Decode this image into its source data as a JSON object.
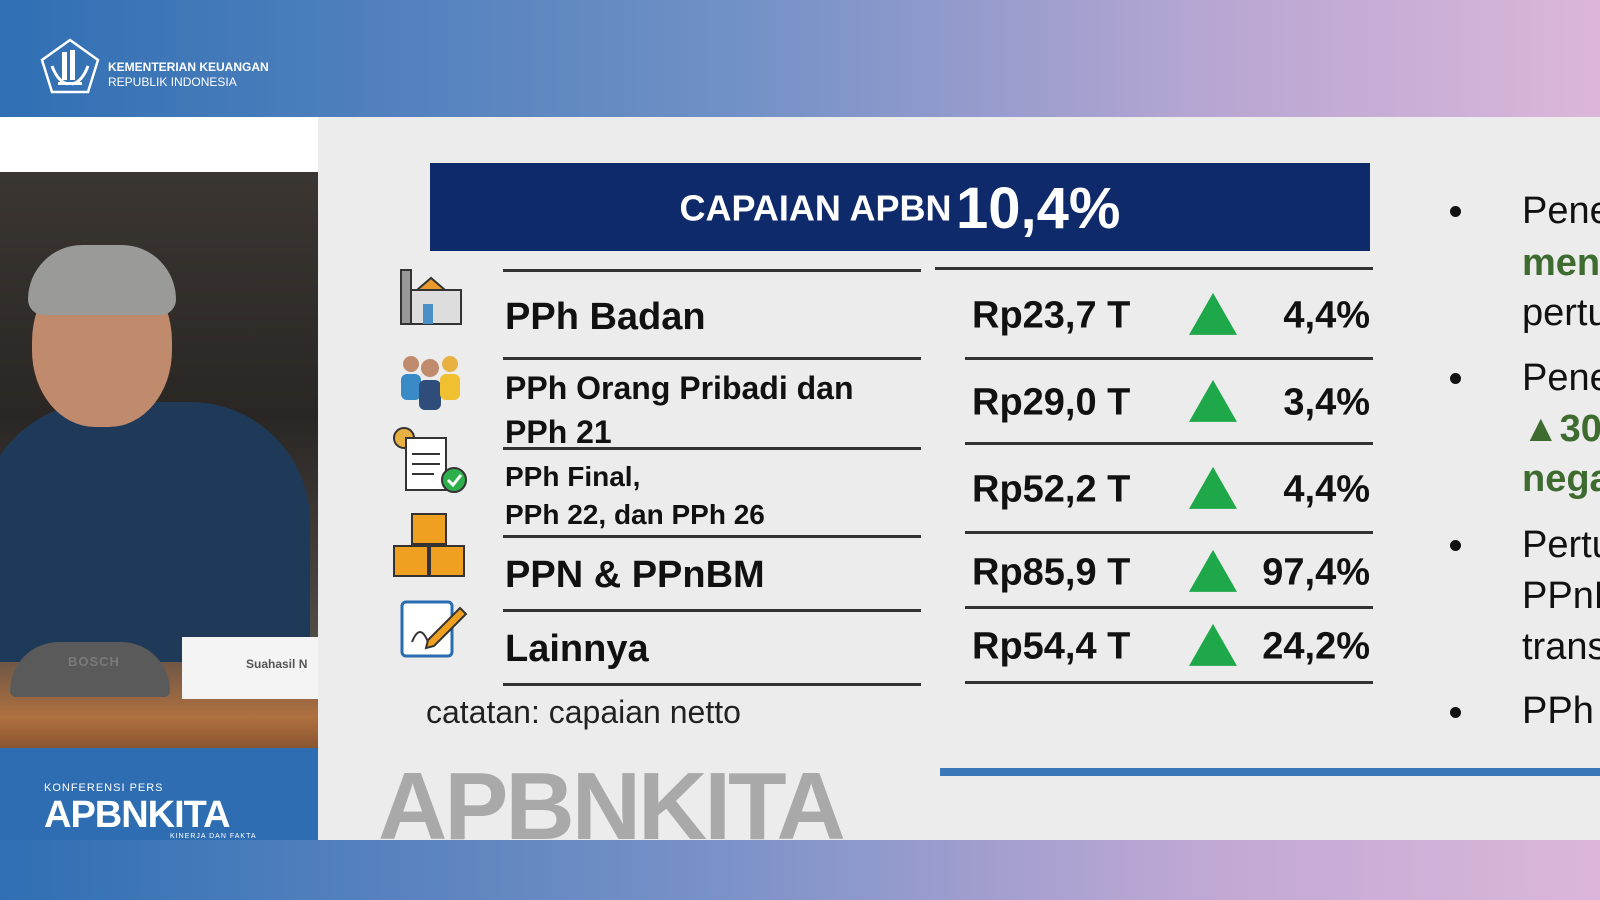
{
  "header": {
    "org_line1": "KEMENTERIAN KEUANGAN",
    "org_line2": "REPUBLIK INDONESIA"
  },
  "video": {
    "nameplate": "Suahasil N",
    "mic_brand": "BOSCH"
  },
  "branding": {
    "event": "KONFERENSI PERS",
    "name": "APBNKITA",
    "tagline": "KINERJA DAN FAKTA"
  },
  "slide": {
    "title_prefix": "CAPAIAN APBN",
    "title_value": "10,4%",
    "rows": [
      {
        "label": "PPh Badan",
        "value": "Rp23,7 T",
        "pct": "4,4%",
        "icon": "factory-icon",
        "trend": "up"
      },
      {
        "label_line1": "PPh Orang Pribadi dan",
        "label_line2": "PPh 21",
        "value": "Rp29,0 T",
        "pct": "3,4%",
        "icon": "people-icon",
        "trend": "up"
      },
      {
        "label_line1": "PPh Final,",
        "label_line2": "PPh 22, dan PPh 26",
        "value": "Rp52,2 T",
        "pct": "4,4%",
        "icon": "document-check-icon",
        "trend": "up"
      },
      {
        "label": "PPN & PPnBM",
        "value": "Rp85,9 T",
        "pct": "97,4%",
        "icon": "boxes-icon",
        "trend": "up"
      },
      {
        "label": "Lainnya",
        "value": "Rp54,4 T",
        "pct": "24,2%",
        "icon": "notepad-pencil-icon",
        "trend": "up"
      }
    ],
    "note": "catatan: capaian netto",
    "watermark": "APBNKITA",
    "bullets": [
      [
        "Pene",
        "menc",
        "pertu"
      ],
      [
        "Pene",
        "▲30",
        "nega"
      ],
      [
        "Pertu",
        "PPnE",
        "trans"
      ],
      [
        "PPh"
      ]
    ],
    "colors": {
      "title_bg": "#0f2a6b",
      "up_arrow": "#1fa84a",
      "highlight_text": "#3e6b30"
    }
  }
}
